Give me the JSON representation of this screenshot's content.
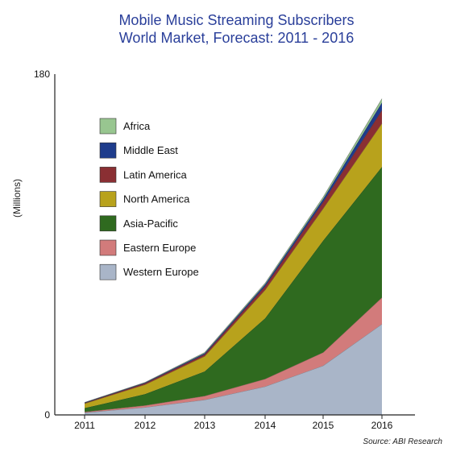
{
  "chart_data": {
    "type": "area",
    "stacked": true,
    "title": "Mobile Music Streaming Subscribers",
    "subtitle": "World Market, Forecast: 2011 - 2016",
    "ylabel": "(Millions)",
    "xlabel": "",
    "x": [
      "2011",
      "2012",
      "2013",
      "2014",
      "2015",
      "2016"
    ],
    "ylim": [
      0,
      180
    ],
    "yticks": [
      "0",
      "180"
    ],
    "grid": false,
    "legend_position": "top-left",
    "source": "Source: ABI Research",
    "series": [
      {
        "name": "Western Europe",
        "color": "#a9b5c8",
        "values": [
          1.2,
          4,
          8,
          15,
          26,
          48
        ]
      },
      {
        "name": "Eastern Europe",
        "color": "#d27b7b",
        "values": [
          0.4,
          1,
          2,
          4,
          7,
          14
        ]
      },
      {
        "name": "Asia-Pacific",
        "color": "#2f6a1f",
        "values": [
          2,
          6,
          13,
          32,
          59,
          69
        ]
      },
      {
        "name": "North America",
        "color": "#b8a21c",
        "values": [
          2.4,
          5,
          8,
          15,
          17,
          23
        ]
      },
      {
        "name": "Latin America",
        "color": "#8a2f33",
        "values": [
          0.3,
          0.7,
          1,
          2,
          3.5,
          7
        ]
      },
      {
        "name": "Middle East",
        "color": "#1e3c8c",
        "values": [
          0.2,
          0.3,
          0.6,
          1,
          1.5,
          4
        ]
      },
      {
        "name": "Africa",
        "color": "#98c690",
        "values": [
          0.1,
          0.2,
          0.4,
          0.6,
          1,
          2
        ]
      }
    ]
  }
}
